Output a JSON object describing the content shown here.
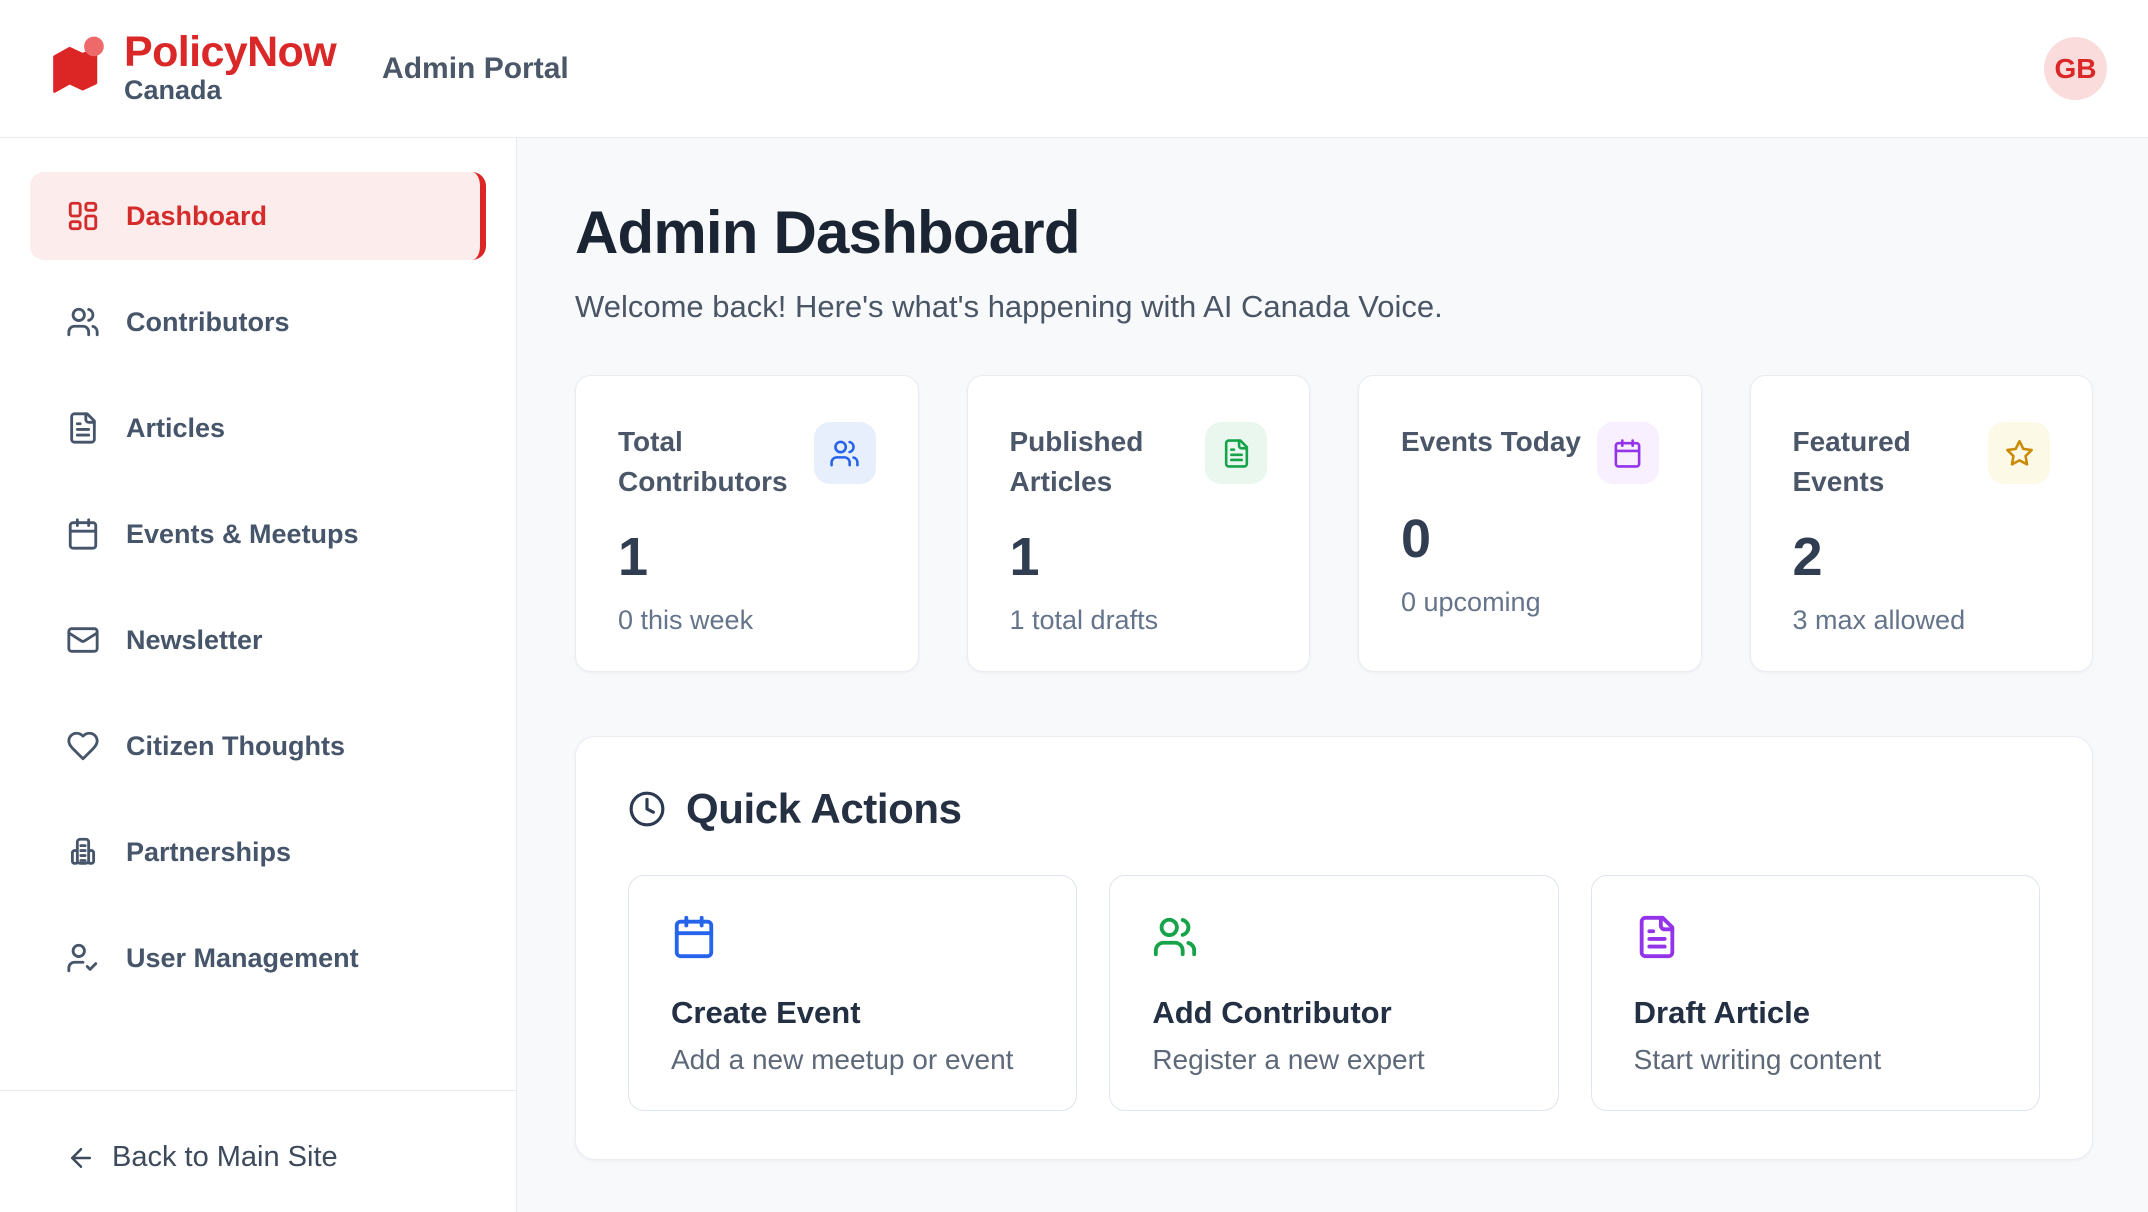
{
  "colors": {
    "accent_red": "#dc2626",
    "active_item_bg": "#fdecec",
    "avatar_bg": "#fbdcdc",
    "main_bg": "#f8f9fb"
  },
  "header": {
    "brand": "PolicyNow",
    "brand_sub": "Canada",
    "portal_label": "Admin Portal",
    "avatar_initials": "GB",
    "logo_icon": "policynow-flag"
  },
  "sidebar": {
    "items": [
      {
        "label": "Dashboard",
        "icon": "layout-dashboard",
        "active": true
      },
      {
        "label": "Contributors",
        "icon": "users",
        "active": false
      },
      {
        "label": "Articles",
        "icon": "file-text",
        "active": false
      },
      {
        "label": "Events & Meetups",
        "icon": "calendar",
        "active": false
      },
      {
        "label": "Newsletter",
        "icon": "mail",
        "active": false
      },
      {
        "label": "Citizen Thoughts",
        "icon": "heart",
        "active": false
      },
      {
        "label": "Partnerships",
        "icon": "building",
        "active": false
      },
      {
        "label": "User Management",
        "icon": "user-check",
        "active": false
      }
    ],
    "footer_link": {
      "label": "Back to Main Site",
      "icon": "arrow-left"
    }
  },
  "main": {
    "title": "Admin Dashboard",
    "subtitle": "Welcome back! Here's what's happening with AI Canada Voice.",
    "stats": [
      {
        "title": "Total Contributors",
        "value": "1",
        "subtext": "0 this week",
        "icon": "users",
        "accent": "#2563eb",
        "chip_bg": "#e8effc"
      },
      {
        "title": "Published Articles",
        "value": "1",
        "subtext": "1 total drafts",
        "icon": "file-text",
        "accent": "#16a34a",
        "chip_bg": "#e9f7ef"
      },
      {
        "title": "Events Today",
        "value": "0",
        "subtext": "0 upcoming",
        "icon": "calendar",
        "accent": "#9333ea",
        "chip_bg": "#f8f0fe"
      },
      {
        "title": "Featured Events",
        "value": "2",
        "subtext": "3 max allowed",
        "icon": "star",
        "accent": "#ca8a04",
        "chip_bg": "#fdf9e7"
      }
    ],
    "quick_actions": {
      "title": "Quick Actions",
      "icon": "clock",
      "items": [
        {
          "title": "Create Event",
          "subtitle": "Add a new meetup or event",
          "icon": "calendar",
          "accent": "#2563eb"
        },
        {
          "title": "Add Contributor",
          "subtitle": "Register a new expert",
          "icon": "users",
          "accent": "#16a34a"
        },
        {
          "title": "Draft Article",
          "subtitle": "Start writing content",
          "icon": "file-text",
          "accent": "#9333ea"
        }
      ]
    }
  }
}
